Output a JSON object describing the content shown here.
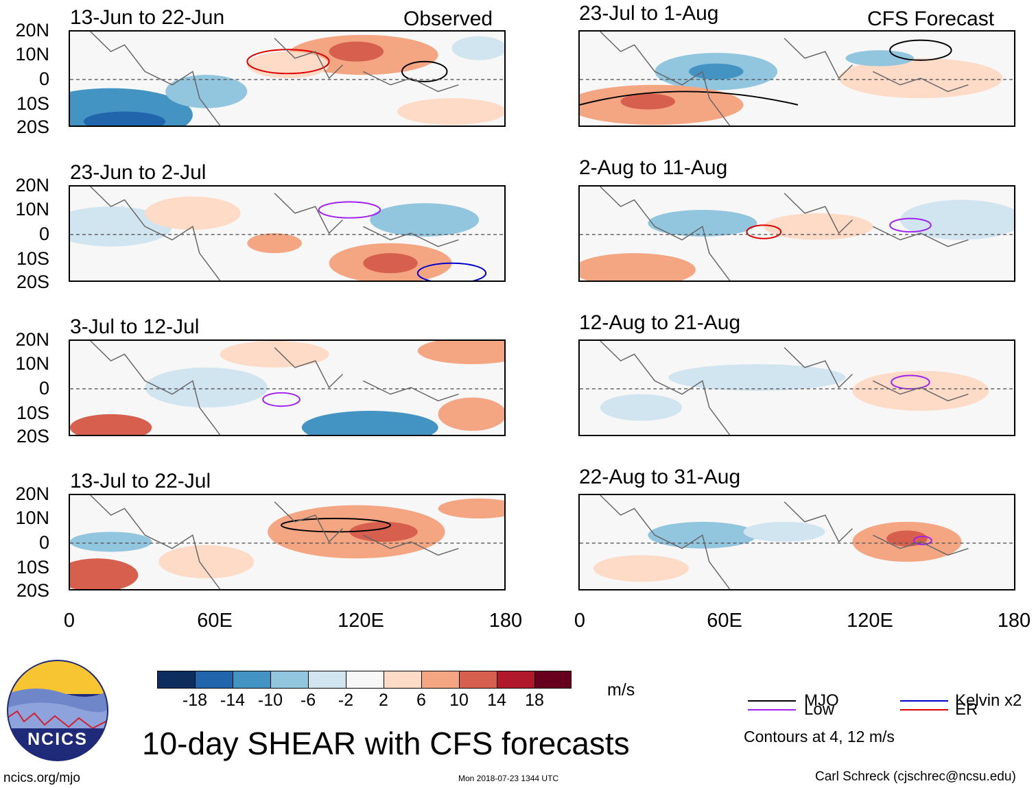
{
  "header": {
    "observed_label": "Observed",
    "forecast_label": "CFS Forecast"
  },
  "panels": {
    "observed": [
      {
        "title": "13-Jun to 22-Jun"
      },
      {
        "title": "23-Jun to 2-Jul"
      },
      {
        "title": "3-Jul to 12-Jul"
      },
      {
        "title": "13-Jul to 22-Jul"
      }
    ],
    "forecast": [
      {
        "title": "23-Jul to 1-Aug"
      },
      {
        "title": "2-Aug to 11-Aug"
      },
      {
        "title": "12-Aug to 21-Aug"
      },
      {
        "title": "22-Aug to 31-Aug"
      }
    ]
  },
  "axes": {
    "y_ticks": [
      "20N",
      "10N",
      "0",
      "10S",
      "20S"
    ],
    "x_ticks": [
      "0",
      "60E",
      "120E",
      "180"
    ]
  },
  "colorbar": {
    "colors": [
      "#0c2d5e",
      "#2166ac",
      "#4393c3",
      "#92c5de",
      "#d1e5f0",
      "#f7f7f7",
      "#fddbc7",
      "#f4a582",
      "#d6604d",
      "#b2182b",
      "#67001f"
    ],
    "labels": [
      "-18",
      "-14",
      "-10",
      "-6",
      "-2",
      "2",
      "6",
      "10",
      "14",
      "18"
    ],
    "unit": "m/s"
  },
  "legend": {
    "items": [
      {
        "label": "MJO",
        "color": "#000000"
      },
      {
        "label": "Kelvin x2",
        "color": "#0000cc"
      },
      {
        "label": "Low",
        "color": "#a020f0"
      },
      {
        "label": "ER",
        "color": "#e00000"
      }
    ],
    "note": "Contours at 4, 12 m/s"
  },
  "footer": {
    "main_title": "10-day SHEAR with CFS forecasts",
    "logo_text": "NCICS",
    "site": "ncics.org/mjo",
    "timestamp": "Mon 2018-07-23 1344 UTC",
    "credit": "Carl Schreck (cjschrec@ncsu.edu)"
  }
}
